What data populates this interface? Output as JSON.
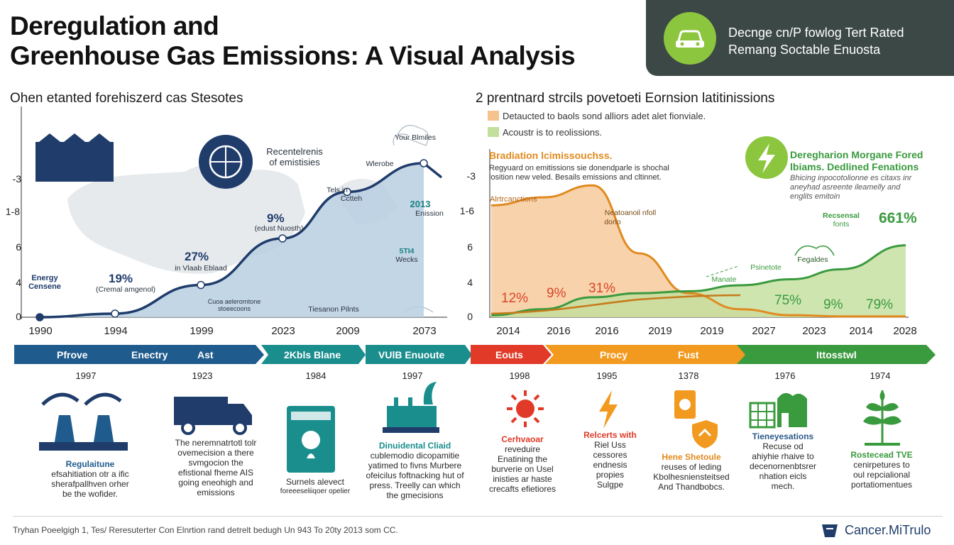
{
  "title_line1": "Deregulation and",
  "title_line2": "Greenhouse Gas Emissions:  A Visual Analysis",
  "header_box": {
    "line1": "Decnge cn/P fowlog Tert Rated",
    "line2": "Remang Soctable Enuosta",
    "icon": "car-icon"
  },
  "left_section_title": "Ohen etanted forehiszerd cas Stesotes",
  "right_section_title": "2 prentnard strcils povetoeti Eornsion latitinissions",
  "legend": [
    {
      "label": "Detaucted to baols sond alliors adet alet fionviale.",
      "color": "#f6c38f"
    },
    {
      "label": "Acoustr is to reolissions.",
      "color": "#c2df9c"
    }
  ],
  "left_chart_labels": {
    "rec_title": "Recentelrenis",
    "rec_sub": "of emistisies",
    "your_blomes": "Your Blmiles",
    "wlerobe": "Wlerobe",
    "tels_in": "Tels in",
    "ccrteh": "Cctteh",
    "l2013": "2013",
    "emission": "Enission",
    "p9": "9%",
    "eduot": "(edust Nuosth)",
    "p27": "27%",
    "in_bland": "in Vlaab Eblaad",
    "p19": "19%",
    "crmal": "(Cremal amgenol)",
    "energy1": "Energy",
    "energy2": "Censene",
    "sti14": "5TI4",
    "wecks": "Wecks",
    "remote": "Tiesanon Pilnts",
    "callout": "Cuoa aelerorntone stoeecoons"
  },
  "right_chart_labels": {
    "head": "Bradiation lcimissouchss.",
    "sub": "Regyuard on emitissions sie donendparle is shochal losition new veled. Besails emissions and cltinnet.",
    "aah": "Alrtrcanctions",
    "mid": "Neatoanoil nfoll",
    "mid2": "dorlo",
    "manate": "Manate",
    "psinetote": "Psinetote",
    "recsensal": "Recsensal",
    "fonts": "fonts",
    "fegaldes": "Fegaldes",
    "dereg1": "Deregharion Morgane Fored",
    "dereg2": "lbiams. Dedlined Fenations",
    "dereg3": "Bhicing inpocotolionne es citaxs inr aneyhad asreente ileamelly and englits emitoin",
    "p12": "12%",
    "p9": "9%",
    "p31": "31%",
    "p75": "75%",
    "p9b": "9%",
    "p79": "79%",
    "p661": "661%"
  },
  "banner_labels": [
    "Pfrove",
    "Enectry",
    "Ast",
    "2Kbls Blane",
    "VUlB Enuoute",
    "Eouts",
    "Procy",
    "Fust",
    "Ittosstwl"
  ],
  "timeline": [
    {
      "year": "1997",
      "text": [
        "Regulaitune",
        "efsahitiation otr a ific",
        "sherafpallhven orher",
        "be the wofider."
      ],
      "icon": "factory-icon"
    },
    {
      "year": "1923",
      "text": [
        "The neremnatrtotl tolr",
        "ovemecision a there",
        "svmgocion the",
        "efistional fheme AIS",
        "going eneohigh and",
        "emissions"
      ],
      "icon": "truck-icon"
    },
    {
      "year": "1984",
      "text": [
        "Surnels alevect",
        "foreeeseliiqoer opelier"
      ],
      "icon": "eco-sign-icon"
    },
    {
      "year": "1997",
      "text": [
        "Dinuidental Cliaid",
        "cublemodio dicopamitie",
        "yatimed to fivns Murbere",
        "ofeicilus foftnacking hut of",
        "press. Treelly can which",
        "the gmecisions"
      ],
      "icon": "industry-icon"
    },
    {
      "year": "1998",
      "text": [
        "Cerhvaoar",
        "reveduire",
        "Enatining the",
        "burverie on Usel",
        "inisties ar haste",
        "crecafts efietiores"
      ],
      "icon": "sun-icon"
    },
    {
      "year": "1995",
      "text": [
        "Relcerts with",
        "Riel Uss",
        "cessores",
        "endnesis",
        "propies",
        "Sulgpe"
      ],
      "icon": "lightning-icon"
    },
    {
      "year": "1378",
      "text": [
        "Hene Shetoule",
        "reuses of leding",
        "Kbolhesniensteitsed",
        "And Thandbobcs."
      ],
      "icon": "shield-icon"
    },
    {
      "year": "1976",
      "text": [
        "Tieneyesations",
        "Recuse od",
        "ahiyhie rhaive to",
        "decenornenbtsrer",
        "nhation eicls",
        "mech."
      ],
      "icon": "building-icon"
    },
    {
      "year": "1974",
      "text": [
        "Rostecead TVE",
        "cenirpetures to",
        "oul repcialional",
        "portatiomentues"
      ],
      "icon": "plant-icon"
    }
  ],
  "footer": "Tryhan Poeelgigh 1, Tes/ Reresuterter Con Elnrtion rand detrelt bedugh Un 943 To 20ty 2013 som CC.",
  "brand": "Cancer.MiTrulo",
  "chart_data": [
    {
      "type": "area",
      "title": "Ohen etanted forehiszerd cas Stesotes",
      "categories": [
        "1990",
        "1994",
        "1999",
        "2023",
        "2009",
        "2073"
      ],
      "y_tick_labels": [
        "-3",
        "1-8",
        "6",
        "4",
        "0"
      ],
      "series": [
        {
          "values": [
            0,
            0.1,
            0.9,
            2.2,
            3.5,
            4.3
          ]
        }
      ],
      "annotations": [
        "19%",
        "27%",
        "9%"
      ]
    },
    {
      "type": "area",
      "title": "2 prentnard strcils povetoeti Eornsion latitinissions",
      "categories": [
        "2014",
        "2016",
        "2016",
        "2019",
        "2019",
        "2027",
        "2023",
        "2014",
        "2028"
      ],
      "y_tick_labels": [
        "-3",
        "1-6",
        "6",
        "4",
        "0"
      ],
      "series": [
        {
          "name": "Detaucted to baols sond alliors adet alet fionviale.",
          "values": [
            2.8,
            3.0,
            3.3,
            1.6,
            0.6,
            0.2,
            0.05,
            0.02,
            0.02
          ]
        },
        {
          "name": "Acoustr is to reolissions.",
          "values": [
            0.05,
            0.2,
            0.5,
            0.6,
            0.65,
            0.8,
            0.95,
            1.2,
            1.8
          ]
        }
      ],
      "annotations": [
        "12%",
        "9%",
        "31%",
        "75%",
        "9%",
        "79%",
        "661%"
      ]
    }
  ]
}
